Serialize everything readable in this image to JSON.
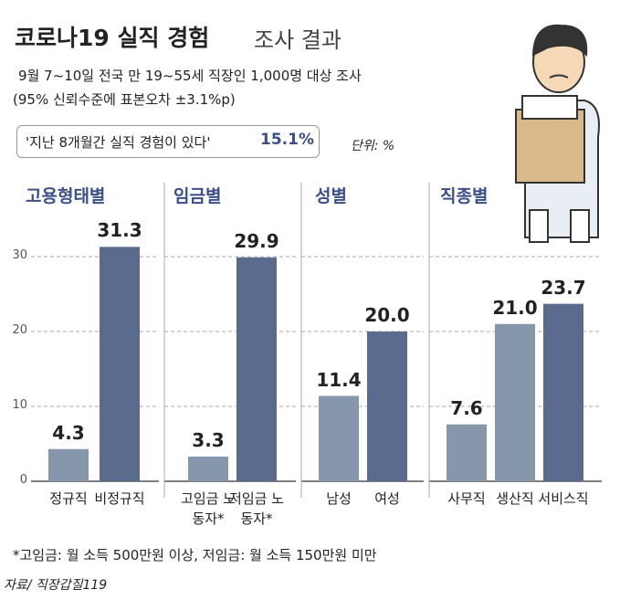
{
  "header": {
    "title": "코로나19 실직 경험",
    "title_suffix": "조사 결과",
    "subtitle": "9월 7~10일 전국 만 19~55세  직장인 1,000명 대상 조사",
    "note": "(95% 신뢰수준에 표본오차 ±3.1%p)",
    "highlight": "'지난 8개월간 실직 경험이 있다'",
    "highlight_value": {
      "value": 15.1,
      "label": "15.1%"
    },
    "unit": "단위: %"
  },
  "chart_data": [
    {
      "type": "bar",
      "title": "고용형태별",
      "categories": [
        "정규직",
        "비정규직"
      ],
      "values": [
        4.3,
        31.3
      ],
      "colors": [
        "#8797ab",
        "#5b6b8e"
      ],
      "ylim": [
        0,
        35
      ],
      "yticks": [
        0,
        10,
        20,
        30
      ],
      "grid": true
    },
    {
      "type": "bar",
      "title": "임금별",
      "categories": [
        "고임금 노동자*",
        "저임금 노동자*"
      ],
      "values": [
        3.3,
        29.9
      ],
      "colors": [
        "#8797ab",
        "#5b6b8e"
      ],
      "ylim": [
        0,
        35
      ],
      "grid": true
    },
    {
      "type": "bar",
      "title": "성별",
      "categories": [
        "남성",
        "여성"
      ],
      "values": [
        11.4,
        20.0
      ],
      "value_labels": [
        "11.4",
        "20.0"
      ],
      "colors": [
        "#8797ab",
        "#5b6b8e"
      ],
      "ylim": [
        0,
        35
      ],
      "grid": true
    },
    {
      "type": "bar",
      "title": "직종별",
      "categories": [
        "사무직",
        "생산직",
        "서비스직"
      ],
      "values": [
        7.6,
        21.0,
        23.7
      ],
      "value_labels": [
        "7.6",
        "21.0",
        "23.7"
      ],
      "colors": [
        "#8797ab",
        "#8797ab",
        "#5b6b8e"
      ],
      "ylim": [
        0,
        35
      ],
      "grid": true
    }
  ],
  "footer": {
    "footnote": "*고임금: 월 소득 500만원 이상, 저임금: 월 소득 150만원 미만",
    "source": "자료/ 직장갑질119"
  }
}
